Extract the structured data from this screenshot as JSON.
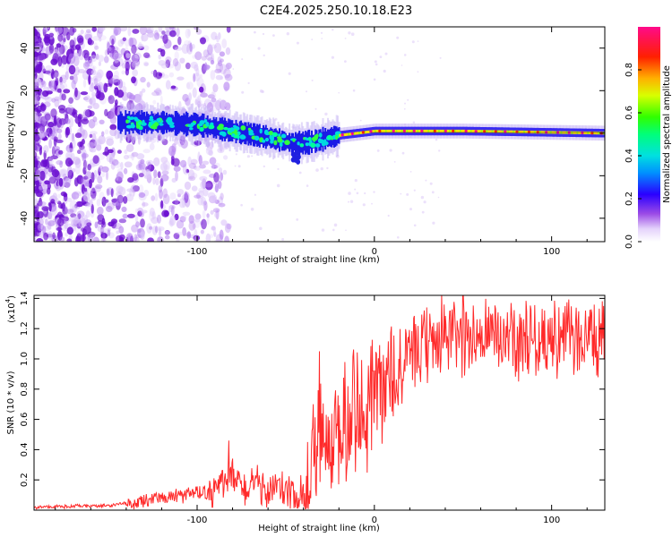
{
  "title": "C2E4.2025.250.10.18.E23",
  "chart_data": [
    {
      "type": "heatmap",
      "name": "spectrogram",
      "xlabel": "Height of straight line (km)",
      "ylabel": "Frequency (Hz)",
      "xlim": [
        -192,
        130
      ],
      "ylim": [
        -51,
        50
      ],
      "xticks": [
        -100,
        0,
        100
      ],
      "yticks": [
        -40,
        -20,
        0,
        20,
        40
      ],
      "colorbar": {
        "label": "Normalized spectral amplitude",
        "range": [
          0,
          1
        ],
        "ticks": [
          "0.0",
          "0.2",
          "0.4",
          "0.6",
          "0.8"
        ],
        "tick_values": [
          0.0,
          0.2,
          0.4,
          0.6,
          0.8
        ],
        "colors": [
          "#ffffff",
          "#c9a4f2",
          "#8a2be2",
          "#0000ff",
          "#00c8ff",
          "#00ff80",
          "#40ff00",
          "#ffff00",
          "#ff8000",
          "#ff0000",
          "#ff0090"
        ]
      },
      "ridge": [
        {
          "x": -140,
          "y": 5
        },
        {
          "x": -120,
          "y": 5
        },
        {
          "x": -100,
          "y": 4
        },
        {
          "x": -80,
          "y": 1
        },
        {
          "x": -60,
          "y": -2
        },
        {
          "x": -45,
          "y": -5
        },
        {
          "x": -35,
          "y": -4
        },
        {
          "x": -20,
          "y": -1
        },
        {
          "x": 0,
          "y": 1
        },
        {
          "x": 50,
          "y": 1
        },
        {
          "x": 130,
          "y": 0
        }
      ]
    },
    {
      "type": "line",
      "name": "snr",
      "xlabel": "Height of straight line (km)",
      "ylabel": "SNR (10 * v/v)",
      "yscale_label": "(x10",
      "yscale_exp": "4",
      "xlim": [
        -192,
        130
      ],
      "ylim": [
        0,
        1.42
      ],
      "xticks": [
        -100,
        0,
        100
      ],
      "yticks": [
        0.2,
        0.4,
        0.6,
        0.8,
        1.0,
        1.2,
        1.4
      ],
      "ytick_labels": [
        "0.2",
        "0.4",
        "0.6",
        "0.8",
        "1.0",
        "1.2",
        "1.4"
      ],
      "color": "#ff2a2a",
      "series_envelope": [
        {
          "x": -192,
          "y": 0.02
        },
        {
          "x": -150,
          "y": 0.03
        },
        {
          "x": -130,
          "y": 0.06
        },
        {
          "x": -110,
          "y": 0.09
        },
        {
          "x": -95,
          "y": 0.12
        },
        {
          "x": -85,
          "y": 0.18
        },
        {
          "x": -80,
          "y": 0.22
        },
        {
          "x": -75,
          "y": 0.15
        },
        {
          "x": -60,
          "y": 0.14
        },
        {
          "x": -50,
          "y": 0.12
        },
        {
          "x": -42,
          "y": 0.05
        },
        {
          "x": -35,
          "y": 0.35
        },
        {
          "x": -25,
          "y": 0.5
        },
        {
          "x": -15,
          "y": 0.6
        },
        {
          "x": 0,
          "y": 0.75
        },
        {
          "x": 10,
          "y": 0.85
        },
        {
          "x": 20,
          "y": 1.0
        },
        {
          "x": 30,
          "y": 1.1
        },
        {
          "x": 40,
          "y": 1.15
        },
        {
          "x": 60,
          "y": 1.15
        },
        {
          "x": 80,
          "y": 1.14
        },
        {
          "x": 100,
          "y": 1.14
        },
        {
          "x": 130,
          "y": 1.13
        }
      ],
      "spikes": [
        {
          "x": -82,
          "y": 0.46
        },
        {
          "x": -31,
          "y": 1.05
        },
        {
          "x": 38,
          "y": 1.43
        },
        {
          "x": 50,
          "y": 1.42
        },
        {
          "x": 77,
          "y": 1.37
        },
        {
          "x": 96,
          "y": 1.32
        }
      ]
    }
  ]
}
